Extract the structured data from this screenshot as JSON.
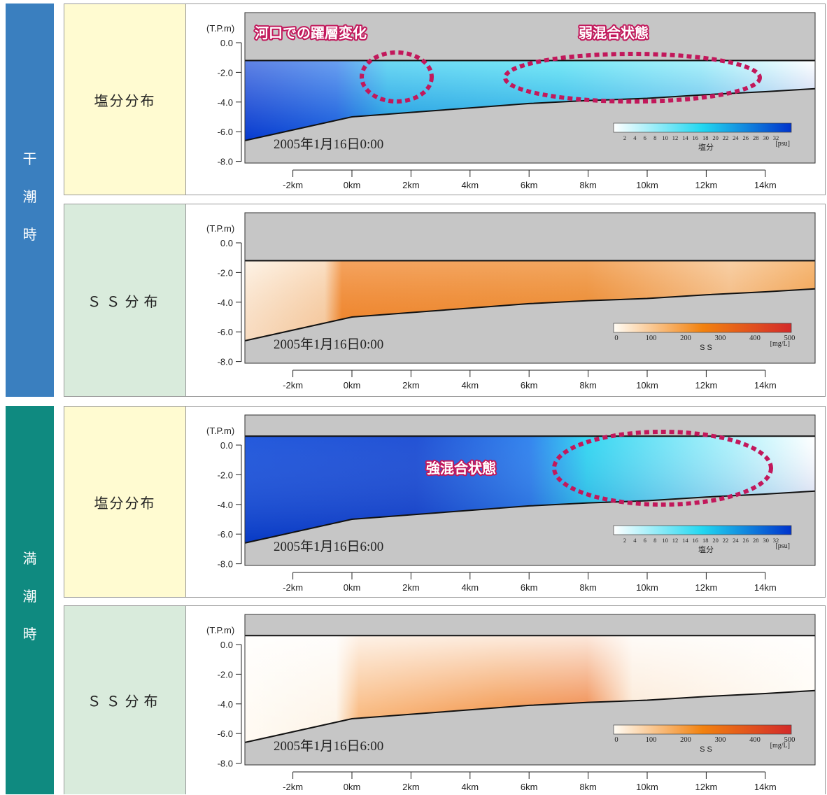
{
  "side_labels": {
    "low_tide": [
      "干",
      "潮",
      "時"
    ],
    "high_tide": [
      "満",
      "潮",
      "時"
    ]
  },
  "colors": {
    "low_tide_bar": "#3a7fbf",
    "high_tide_bar": "#0f8a80",
    "salinity_label_bg": "#fffbd1",
    "ss_label_bg": "#d9ebdc",
    "annotation": "#c2185b",
    "salinity_low": "#ffffff",
    "salinity_mid": "#22d7f0",
    "salinity_high": "#0033cc",
    "ss_low": "#fffcf5",
    "ss_mid": "#f2820f",
    "ss_high": "#d32a2a",
    "bed": "#c6c6c6"
  },
  "annotations": {
    "layer_change": "河口での躍層変化",
    "weak_mixing": "弱混合状態",
    "strong_mixing": "強混合状態"
  },
  "chart_data": [
    {
      "type": "heatmap",
      "panel": "low_salinity",
      "label": "塩分分布",
      "ylabel": "(T.P.m)",
      "y_ticks": [
        "0.0",
        "-2.0",
        "-4.0",
        "-6.0",
        "-8.0"
      ],
      "x_ticks": [
        "-2km",
        "0km",
        "2km",
        "4km",
        "6km",
        "8km",
        "10km",
        "12km",
        "14km"
      ],
      "x": [
        -2,
        0,
        2,
        4,
        6,
        8,
        10,
        12,
        14
      ],
      "ylim": [
        -8.0,
        0.0
      ],
      "timestamp": "2005年1月16日0:00",
      "colorbar": {
        "ticks": [
          "2",
          "4",
          "6",
          "8",
          "10",
          "12",
          "14",
          "16",
          "18",
          "20",
          "22",
          "24",
          "26",
          "28",
          "30",
          "32"
        ],
        "unit": "[psu]",
        "name": "塩分"
      },
      "water_surface": -1.2
    },
    {
      "type": "heatmap",
      "panel": "low_ss",
      "label": "ＳＳ分布",
      "ylabel": "(T.P.m)",
      "y_ticks": [
        "0.0",
        "-2.0",
        "-4.0",
        "-6.0",
        "-8.0"
      ],
      "x_ticks": [
        "-2km",
        "0km",
        "2km",
        "4km",
        "6km",
        "8km",
        "10km",
        "12km",
        "14km"
      ],
      "x": [
        -2,
        0,
        2,
        4,
        6,
        8,
        10,
        12,
        14
      ],
      "ylim": [
        -8.0,
        0.0
      ],
      "timestamp": "2005年1月16日0:00",
      "colorbar": {
        "ticks": [
          "0",
          "100",
          "200",
          "300",
          "400",
          "500"
        ],
        "unit": "[mg/L]",
        "name": "S S"
      },
      "water_surface": -1.2
    },
    {
      "type": "heatmap",
      "panel": "high_salinity",
      "label": "塩分分布",
      "ylabel": "(T.P.m)",
      "y_ticks": [
        "0.0",
        "-2.0",
        "-4.0",
        "-6.0",
        "-8.0"
      ],
      "x_ticks": [
        "-2km",
        "0km",
        "2km",
        "4km",
        "6km",
        "8km",
        "10km",
        "12km",
        "14km"
      ],
      "x": [
        -2,
        0,
        2,
        4,
        6,
        8,
        10,
        12,
        14
      ],
      "ylim": [
        -8.0,
        0.0
      ],
      "timestamp": "2005年1月16日6:00",
      "colorbar": {
        "ticks": [
          "2",
          "4",
          "6",
          "8",
          "10",
          "12",
          "14",
          "16",
          "18",
          "20",
          "22",
          "24",
          "26",
          "28",
          "30",
          "32"
        ],
        "unit": "[psu]",
        "name": "塩分"
      },
      "water_surface": 0.6
    },
    {
      "type": "heatmap",
      "panel": "high_ss",
      "label": "ＳＳ分布",
      "ylabel": "(T.P.m)",
      "y_ticks": [
        "0.0",
        "-2.0",
        "-4.0",
        "-6.0",
        "-8.0"
      ],
      "x_ticks": [
        "-2km",
        "0km",
        "2km",
        "4km",
        "6km",
        "8km",
        "10km",
        "12km",
        "14km"
      ],
      "x": [
        -2,
        0,
        2,
        4,
        6,
        8,
        10,
        12,
        14
      ],
      "ylim": [
        -8.0,
        0.0
      ],
      "timestamp": "2005年1月16日6:00",
      "colorbar": {
        "ticks": [
          "0",
          "100",
          "200",
          "300",
          "400",
          "500"
        ],
        "unit": "[mg/L]",
        "name": "S S"
      },
      "water_surface": 0.6
    }
  ]
}
